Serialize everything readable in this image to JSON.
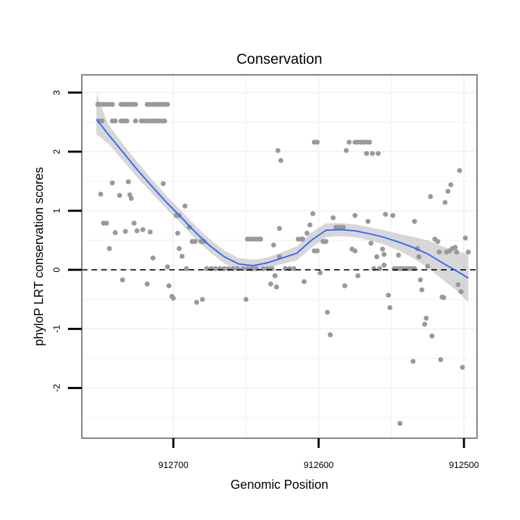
{
  "chart_data": {
    "type": "scatter",
    "title": "Conservation",
    "xlabel": "Genomic Position",
    "ylabel": "phyloP LRT conservation scores",
    "x_reversed": true,
    "xlim": [
      912763,
      912491
    ],
    "ylim": [
      -2.85,
      3.3
    ],
    "xticks": [
      912700,
      912600,
      912500
    ],
    "xtick_labels": [
      "912700",
      "912600",
      "912500"
    ],
    "yticks": [
      -2,
      -1,
      0,
      1,
      2,
      3
    ],
    "ytick_labels": [
      "-2",
      "-1",
      "0",
      "1",
      "2",
      "3"
    ],
    "grid": true,
    "reference_line": {
      "y": 0,
      "style": "dashed"
    },
    "colors": {
      "points": "#999999",
      "smooth_line": "#3366FF",
      "confidence_band": "#BEBEBE",
      "panel_border": "#7F7F7F",
      "grid": "#F2F2F2"
    },
    "series": [
      {
        "name": "phyloP scores",
        "points": [
          [
            912752,
            2.8
          ],
          [
            912750,
            2.8
          ],
          [
            912748,
            2.8
          ],
          [
            912746,
            2.8
          ],
          [
            912744,
            2.8
          ],
          [
            912742,
            2.8
          ],
          [
            912736,
            2.8
          ],
          [
            912734,
            2.8
          ],
          [
            912732,
            2.8
          ],
          [
            912730,
            2.8
          ],
          [
            912728,
            2.8
          ],
          [
            912726,
            2.8
          ],
          [
            912718,
            2.8
          ],
          [
            912716,
            2.8
          ],
          [
            912714,
            2.8
          ],
          [
            912712,
            2.8
          ],
          [
            912710,
            2.8
          ],
          [
            912708,
            2.8
          ],
          [
            912706,
            2.8
          ],
          [
            912704,
            2.8
          ],
          [
            912751,
            2.52
          ],
          [
            912749,
            2.52
          ],
          [
            912742,
            2.52
          ],
          [
            912740,
            2.52
          ],
          [
            912736,
            2.52
          ],
          [
            912734,
            2.52
          ],
          [
            912732,
            2.52
          ],
          [
            912726,
            2.52
          ],
          [
            912722,
            2.52
          ],
          [
            912720,
            2.52
          ],
          [
            912718,
            2.52
          ],
          [
            912716,
            2.52
          ],
          [
            912714,
            2.52
          ],
          [
            912712,
            2.52
          ],
          [
            912710,
            2.52
          ],
          [
            912708,
            2.52
          ],
          [
            912706,
            2.52
          ],
          [
            912750,
            1.28
          ],
          [
            912748,
            0.79
          ],
          [
            912746,
            0.79
          ],
          [
            912744,
            0.36
          ],
          [
            912742,
            1.47
          ],
          [
            912740,
            0.63
          ],
          [
            912737,
            1.26
          ],
          [
            912735,
            -0.17
          ],
          [
            912733,
            0.65
          ],
          [
            912731,
            1.49
          ],
          [
            912730,
            1.27
          ],
          [
            912729,
            1.21
          ],
          [
            912727,
            0.79
          ],
          [
            912725,
            0.66
          ],
          [
            912721,
            0.68
          ],
          [
            912718,
            -0.24
          ],
          [
            912716,
            0.64
          ],
          [
            912714,
            0.2
          ],
          [
            912707,
            1.46
          ],
          [
            912704,
            0.05
          ],
          [
            912703,
            -0.27
          ],
          [
            912701,
            -0.45
          ],
          [
            912700,
            -0.48
          ],
          [
            912697,
            0.62
          ],
          [
            912696,
            0.36
          ],
          [
            912694,
            0.23
          ],
          [
            912692,
            1.08
          ],
          [
            912691,
            0.02
          ],
          [
            912689,
            0.72
          ],
          [
            912687,
            0.48
          ],
          [
            912685,
            0.48
          ],
          [
            912684,
            -0.55
          ],
          [
            912681,
            0.48
          ],
          [
            912679,
            0.48
          ],
          [
            912680,
            -0.5
          ],
          [
            912698,
            0.92
          ],
          [
            912696,
            0.92
          ],
          [
            912677,
            0.02
          ],
          [
            912674,
            0.02
          ],
          [
            912671,
            0.02
          ],
          [
            912668,
            0.02
          ],
          [
            912665,
            0.02
          ],
          [
            912662,
            0.02
          ],
          [
            912659,
            0.02
          ],
          [
            912656,
            0.02
          ],
          [
            912652,
            0.02
          ],
          [
            912649,
            0.02
          ],
          [
            912646,
            0.02
          ],
          [
            912643,
            0.02
          ],
          [
            912650,
            -0.5
          ],
          [
            912649,
            0.52
          ],
          [
            912647,
            0.52
          ],
          [
            912645,
            0.52
          ],
          [
            912643,
            0.52
          ],
          [
            912641,
            0.52
          ],
          [
            912640,
            0.52
          ],
          [
            912638,
            0.02
          ],
          [
            912635,
            0.02
          ],
          [
            912632,
            0.02
          ],
          [
            912633,
            -0.24
          ],
          [
            912631,
            0.42
          ],
          [
            912630,
            -0.1
          ],
          [
            912629,
            -0.29
          ],
          [
            912628,
            2.02
          ],
          [
            912627,
            0.7
          ],
          [
            912626,
            1.85
          ],
          [
            912627,
            0.22
          ],
          [
            912623,
            0.02
          ],
          [
            912620,
            0.02
          ],
          [
            912617,
            0.02
          ],
          [
            912614,
            0.52
          ],
          [
            912612,
            0.52
          ],
          [
            912611,
            0.52
          ],
          [
            912610,
            -0.2
          ],
          [
            912608,
            0.62
          ],
          [
            912606,
            0.76
          ],
          [
            912604,
            0.95
          ],
          [
            912603,
            2.16
          ],
          [
            912601,
            2.16
          ],
          [
            912603,
            0.32
          ],
          [
            912601,
            0.32
          ],
          [
            912599,
            -0.05
          ],
          [
            912597,
            0.48
          ],
          [
            912596,
            0.48
          ],
          [
            912595,
            0.48
          ],
          [
            912594,
            -0.72
          ],
          [
            912592,
            -1.1
          ],
          [
            912590,
            0.88
          ],
          [
            912588,
            0.72
          ],
          [
            912586,
            0.72
          ],
          [
            912584,
            0.72
          ],
          [
            912583,
            0.72
          ],
          [
            912582,
            -0.27
          ],
          [
            912581,
            2.02
          ],
          [
            912579,
            2.16
          ],
          [
            912577,
            0.35
          ],
          [
            912575,
            0.32
          ],
          [
            912575,
            0.92
          ],
          [
            912573,
            -0.1
          ],
          [
            912575,
            2.16
          ],
          [
            912573,
            2.16
          ],
          [
            912571,
            2.16
          ],
          [
            912569,
            2.16
          ],
          [
            912567,
            2.16
          ],
          [
            912565,
            2.16
          ],
          [
            912567,
            1.97
          ],
          [
            912563,
            1.97
          ],
          [
            912559,
            1.97
          ],
          [
            912566,
            0.82
          ],
          [
            912564,
            0.45
          ],
          [
            912562,
            0.02
          ],
          [
            912560,
            0.22
          ],
          [
            912558,
            0.02
          ],
          [
            912556,
            0.35
          ],
          [
            912555,
            0.26
          ],
          [
            912554,
            0.94
          ],
          [
            912552,
            -0.43
          ],
          [
            912551,
            -0.64
          ],
          [
            912549,
            0.92
          ],
          [
            912548,
            0.02
          ],
          [
            912546,
            0.02
          ],
          [
            912544,
            0.02
          ],
          [
            912542,
            0.02
          ],
          [
            912540,
            0.02
          ],
          [
            912538,
            0.02
          ],
          [
            912536,
            0.02
          ],
          [
            912534,
            0.02
          ],
          [
            912555,
            0.08
          ],
          [
            912545,
            0.25
          ],
          [
            912544,
            -2.6
          ],
          [
            912540,
            0.02
          ],
          [
            912535,
            -1.55
          ],
          [
            912534,
            0.82
          ],
          [
            912532,
            0.36
          ],
          [
            912531,
            0.22
          ],
          [
            912530,
            -0.17
          ],
          [
            912529,
            -0.34
          ],
          [
            912527,
            -0.92
          ],
          [
            912526,
            -0.82
          ],
          [
            912525,
            0.06
          ],
          [
            912523,
            1.24
          ],
          [
            912522,
            -1.12
          ],
          [
            912520,
            0.52
          ],
          [
            912518,
            0.48
          ],
          [
            912517,
            0.3
          ],
          [
            912516,
            -1.52
          ],
          [
            912515,
            -0.46
          ],
          [
            912514,
            -0.47
          ],
          [
            912513,
            1.14
          ],
          [
            912512,
            0.3
          ],
          [
            912511,
            1.33
          ],
          [
            912510,
            0.32
          ],
          [
            912509,
            1.44
          ],
          [
            912508,
            0.36
          ],
          [
            912506,
            0.38
          ],
          [
            912505,
            0.3
          ],
          [
            912504,
            -0.25
          ],
          [
            912503,
            1.68
          ],
          [
            912502,
            -0.37
          ],
          [
            912501,
            -1.65
          ],
          [
            912499,
            0.54
          ],
          [
            912497,
            0.3
          ]
        ]
      }
    ],
    "smooth": {
      "method": "loess",
      "x": [
        912753,
        912745,
        912735,
        912725,
        912715,
        912705,
        912695,
        912685,
        912675,
        912665,
        912655,
        912645,
        912635,
        912625,
        912615,
        912605,
        912595,
        912585,
        912575,
        912565,
        912555,
        912545,
        912535,
        912525,
        912515,
        912505,
        912497
      ],
      "y": [
        2.55,
        2.3,
        2.0,
        1.7,
        1.42,
        1.15,
        0.9,
        0.64,
        0.41,
        0.22,
        0.1,
        0.07,
        0.12,
        0.2,
        0.28,
        0.5,
        0.67,
        0.68,
        0.66,
        0.61,
        0.55,
        0.47,
        0.38,
        0.27,
        0.12,
        -0.02,
        -0.14
      ],
      "lower": [
        2.3,
        2.14,
        1.86,
        1.57,
        1.3,
        1.04,
        0.79,
        0.53,
        0.3,
        0.11,
        0.0,
        -0.03,
        0.03,
        0.1,
        0.16,
        0.37,
        0.55,
        0.57,
        0.55,
        0.5,
        0.43,
        0.33,
        0.2,
        0.04,
        -0.16,
        -0.35,
        -0.55
      ],
      "upper": [
        2.98,
        2.47,
        2.14,
        1.83,
        1.54,
        1.26,
        1.01,
        0.75,
        0.52,
        0.33,
        0.2,
        0.17,
        0.21,
        0.3,
        0.4,
        0.63,
        0.79,
        0.79,
        0.77,
        0.72,
        0.67,
        0.61,
        0.56,
        0.5,
        0.4,
        0.31,
        0.27
      ]
    }
  }
}
